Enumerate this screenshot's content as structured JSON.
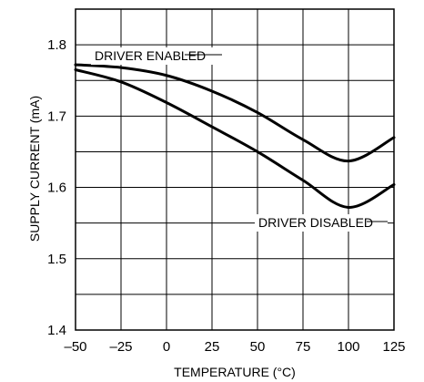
{
  "chart_data": {
    "type": "line",
    "xlabel": "TEMPERATURE (°C)",
    "ylabel": "SUPPLY CURRENT (mA)",
    "xlim": [
      -50,
      125
    ],
    "ylim": [
      1.4,
      1.85
    ],
    "x_ticks": [
      -50,
      -25,
      0,
      25,
      50,
      75,
      100,
      125
    ],
    "x_tick_labels": [
      "–50",
      "–25",
      "0",
      "25",
      "50",
      "75",
      "100",
      "125"
    ],
    "y_ticks": [
      1.4,
      1.5,
      1.6,
      1.7,
      1.8
    ],
    "y_tick_labels": [
      "1.4",
      "1.5",
      "1.6",
      "1.7",
      "1.8"
    ],
    "grid": true,
    "series": [
      {
        "name": "DRIVER ENABLED",
        "x": [
          -50,
          -25,
          0,
          25,
          50,
          75,
          100,
          125
        ],
        "y": [
          1.772,
          1.768,
          1.757,
          1.735,
          1.705,
          1.667,
          1.637,
          1.67
        ]
      },
      {
        "name": "DRIVER DISABLED",
        "x": [
          -50,
          -25,
          0,
          25,
          50,
          75,
          100,
          125
        ],
        "y": [
          1.765,
          1.748,
          1.719,
          1.685,
          1.65,
          1.61,
          1.572,
          1.604
        ]
      }
    ]
  }
}
